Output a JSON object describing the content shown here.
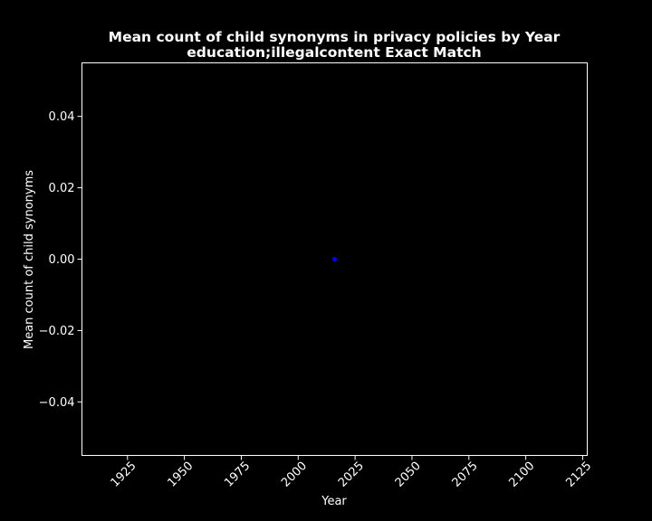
{
  "chart_data": {
    "type": "scatter",
    "title": "Mean count of child synonyms in privacy policies by Year",
    "subtitle": "education;illegalcontent Exact Match",
    "xlabel": "Year",
    "ylabel": "Mean count of child synonyms",
    "xlim": [
      1905,
      2127
    ],
    "ylim": [
      -0.055,
      0.055
    ],
    "xticks": [
      1925,
      1950,
      1975,
      2000,
      2025,
      2050,
      2075,
      2100,
      2125
    ],
    "yticks": [
      -0.04,
      -0.02,
      0.0,
      0.02,
      0.04
    ],
    "ytick_labels": [
      "−0.04",
      "−0.02",
      "0.00",
      "0.02",
      "0.04"
    ],
    "grid": false,
    "points": [
      {
        "x": 2016,
        "y": 0.0
      }
    ],
    "colors": {
      "background": "#000000",
      "axes": "#ffffff",
      "text": "#ffffff",
      "point": "#0000ff"
    }
  }
}
